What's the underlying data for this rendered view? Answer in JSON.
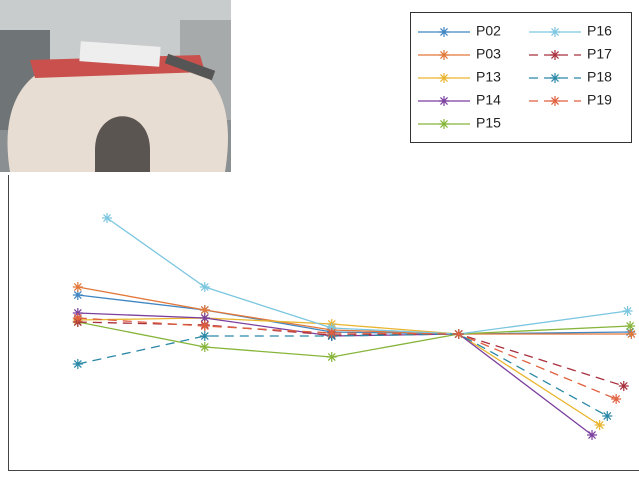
{
  "chart_data": {
    "type": "line",
    "xlim": [
      0.45,
      5.42
    ],
    "ylim": [
      -13.6,
      33.4
    ],
    "legend": "upper right",
    "legend_columns": 2,
    "series": [
      {
        "name": "P02",
        "color": "#3f86c2",
        "dash": false,
        "x": [
          1,
          2,
          3,
          4,
          5.35
        ],
        "values": [
          3.9,
          2.4,
          0.2,
          0,
          0.2
        ]
      },
      {
        "name": "P03",
        "color": "#e2783a",
        "dash": false,
        "x": [
          1,
          2,
          3,
          4,
          5.36
        ],
        "values": [
          4.7,
          2.4,
          0.4,
          0,
          0
        ]
      },
      {
        "name": "P13",
        "color": "#e9b52e",
        "dash": false,
        "x": [
          1,
          2,
          3,
          4,
          5.11
        ],
        "values": [
          1.4,
          1.6,
          1.0,
          0,
          -9.1
        ]
      },
      {
        "name": "P14",
        "color": "#7b3f9e",
        "dash": false,
        "x": [
          1,
          2,
          3,
          4,
          5.05
        ],
        "values": [
          2.1,
          1.6,
          -0.2,
          0,
          -10.1
        ]
      },
      {
        "name": "P15",
        "color": "#86b53a",
        "dash": false,
        "x": [
          1,
          2,
          3,
          4,
          5.35
        ],
        "values": [
          1.2,
          -1.3,
          -2.3,
          0,
          0.8
        ]
      },
      {
        "name": "P16",
        "color": "#7cc6e0",
        "dash": false,
        "x": [
          1.23,
          2,
          3,
          4,
          5.33
        ],
        "values": [
          11.6,
          4.7,
          0.6,
          0,
          2.3
        ]
      },
      {
        "name": "P17",
        "color": "#a8303e",
        "dash": true,
        "x": [
          1,
          2,
          3,
          4,
          5.3
        ],
        "values": [
          1.2,
          0.9,
          -0.1,
          0,
          -5.2
        ]
      },
      {
        "name": "P18",
        "color": "#2a88a6",
        "dash": true,
        "x": [
          1,
          2,
          3,
          4,
          5.17
        ],
        "values": [
          -3.0,
          -0.2,
          -0.2,
          0,
          -8.2
        ]
      },
      {
        "name": "P19",
        "color": "#e0603e",
        "dash": true,
        "x": [
          1,
          2,
          3,
          4,
          5.24
        ],
        "values": [
          1.6,
          0.8,
          0.1,
          0,
          -6.5
        ]
      }
    ]
  }
}
